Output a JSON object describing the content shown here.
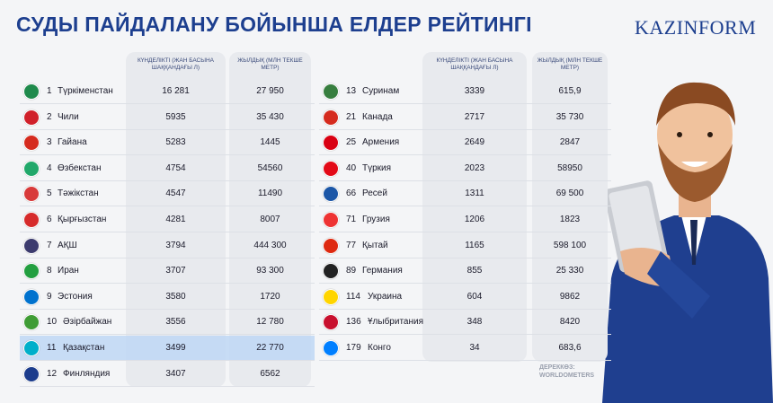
{
  "header": {
    "title": "СУДЫ ПАЙДАЛАНУ БОЙЫНША ЕЛДЕР РЕЙТИНГІ",
    "logo": "KAZINFORM"
  },
  "columns": {
    "daily": "КҮНДЕЛІКТІ (ЖАН БАСЫНА ШАҚҚАНДАҒЫ Л)",
    "annual": "ЖЫЛДЫҚ (МЛН ТЕКШЕ МЕТР)"
  },
  "tables": [
    {
      "rows": [
        [
          "1",
          "Түркіменстан",
          "16 281",
          "27 950"
        ],
        [
          "2",
          "Чили",
          "5935",
          "35 430"
        ],
        [
          "3",
          "Гайана",
          "5283",
          "1445"
        ],
        [
          "4",
          "Өзбекстан",
          "4754",
          "54560"
        ],
        [
          "5",
          "Тәжікстан",
          "4547",
          "11490"
        ],
        [
          "6",
          "Қырғызстан",
          "4281",
          "8007"
        ],
        [
          "7",
          "АҚШ",
          "3794",
          "444 300"
        ],
        [
          "8",
          "Иран",
          "3707",
          "93 300"
        ],
        [
          "9",
          "Эстония",
          "3580",
          "1720"
        ],
        [
          "10",
          "Әзірбайжан",
          "3556",
          "12 780"
        ],
        [
          "11",
          "Қазақстан",
          "3499",
          "22 770"
        ],
        [
          "12",
          "Финляндия",
          "3407",
          "6562"
        ]
      ]
    },
    {
      "rows": [
        [
          "13",
          "Суринам",
          "3339",
          "615,9"
        ],
        [
          "21",
          "Канада",
          "2717",
          "35 730"
        ],
        [
          "25",
          "Армения",
          "2649",
          "2847"
        ],
        [
          "40",
          "Түркия",
          "2023",
          "58950"
        ],
        [
          "66",
          "Ресей",
          "1311",
          "69 500"
        ],
        [
          "71",
          "Грузия",
          "1206",
          "1823"
        ],
        [
          "77",
          "Қытай",
          "1165",
          "598 100"
        ],
        [
          "89",
          "Германия",
          "855",
          "25 330"
        ],
        [
          "114",
          "Украина",
          "604",
          "9862"
        ],
        [
          "136",
          "Ұлыбритания",
          "348",
          "8420"
        ],
        [
          "179",
          "Конго",
          "34",
          "683,6"
        ]
      ]
    }
  ],
  "source": "ДЕРЕККӨЗ: WORLDOMETERS"
}
